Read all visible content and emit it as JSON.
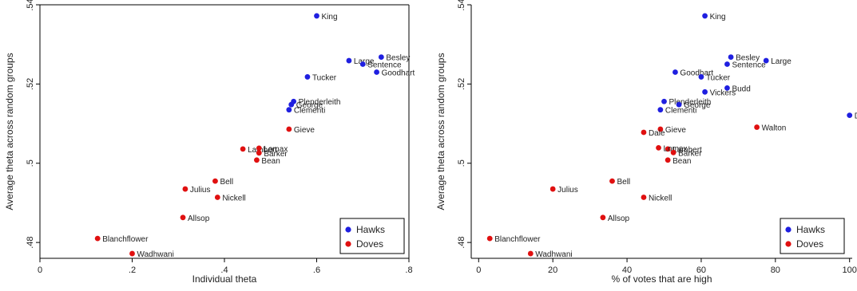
{
  "chart_data": [
    {
      "type": "scatter",
      "xlabel": "Individual theta",
      "ylabel": "Average theta across random groups",
      "xlim": [
        0,
        0.8
      ],
      "ylim": [
        0.476,
        0.54
      ],
      "xticks": [
        0,
        0.2,
        0.4,
        0.6,
        0.8
      ],
      "xticklabels": [
        "0",
        ".2",
        ".4",
        ".6",
        ".8"
      ],
      "yticks": [
        0.48,
        0.5,
        0.52,
        0.54
      ],
      "yticklabels": [
        ".48",
        ".5",
        ".52",
        ".54"
      ],
      "legend_position": "bottom-right",
      "series": [
        {
          "name": "Hawks",
          "color": "#1f1fe0",
          "points": [
            {
              "label": "King",
              "x": 0.6,
              "y": 0.5372
            },
            {
              "label": "Large",
              "x": 0.67,
              "y": 0.5259
            },
            {
              "label": "Besley",
              "x": 0.74,
              "y": 0.5268
            },
            {
              "label": "Sentence",
              "x": 0.7,
              "y": 0.525
            },
            {
              "label": "Goodhart",
              "x": 0.73,
              "y": 0.523
            },
            {
              "label": "Tucker",
              "x": 0.58,
              "y": 0.5218
            },
            {
              "label": "Plenderleith",
              "x": 0.55,
              "y": 0.5156
            },
            {
              "label": "George",
              "x": 0.545,
              "y": 0.5148
            },
            {
              "label": "Clementi",
              "x": 0.54,
              "y": 0.5135
            }
          ]
        },
        {
          "name": "Doves",
          "color": "#e01010",
          "points": [
            {
              "label": "Gieve",
              "x": 0.54,
              "y": 0.5086
            },
            {
              "label": "Lambert",
              "x": 0.44,
              "y": 0.5036
            },
            {
              "label": "Lomax",
              "x": 0.475,
              "y": 0.5038
            },
            {
              "label": "Barker",
              "x": 0.475,
              "y": 0.5026
            },
            {
              "label": "Bean",
              "x": 0.47,
              "y": 0.5008
            },
            {
              "label": "Bell",
              "x": 0.38,
              "y": 0.4955
            },
            {
              "label": "Julius",
              "x": 0.315,
              "y": 0.4935
            },
            {
              "label": "Nickell",
              "x": 0.385,
              "y": 0.4914
            },
            {
              "label": "Allsop",
              "x": 0.31,
              "y": 0.4863
            },
            {
              "label": "Blanchflower",
              "x": 0.125,
              "y": 0.481
            },
            {
              "label": "Wadhwani",
              "x": 0.2,
              "y": 0.4772
            }
          ]
        }
      ]
    },
    {
      "type": "scatter",
      "xlabel": "% of votes that are high",
      "ylabel": "Average theta across random groups",
      "xlim": [
        -2,
        102
      ],
      "ylim": [
        0.476,
        0.54
      ],
      "xticks": [
        0,
        20,
        40,
        60,
        80,
        100
      ],
      "xticklabels": [
        "0",
        "20",
        "40",
        "60",
        "80",
        "100"
      ],
      "yticks": [
        0.48,
        0.5,
        0.52,
        0.54
      ],
      "yticklabels": [
        ".48",
        ".5",
        ".52",
        ".54"
      ],
      "legend_position": "bottom-right",
      "series": [
        {
          "name": "Hawks",
          "color": "#1f1fe0",
          "points": [
            {
              "label": "King",
              "x": 61,
              "y": 0.5372
            },
            {
              "label": "Besley",
              "x": 68,
              "y": 0.5268
            },
            {
              "label": "Large",
              "x": 77.5,
              "y": 0.5259
            },
            {
              "label": "Sentence",
              "x": 67,
              "y": 0.525
            },
            {
              "label": "Goodhart",
              "x": 53,
              "y": 0.523
            },
            {
              "label": "Tucker",
              "x": 60,
              "y": 0.5218
            },
            {
              "label": "Budd",
              "x": 67,
              "y": 0.519
            },
            {
              "label": "Vickers",
              "x": 61,
              "y": 0.518
            },
            {
              "label": "Plenderleith",
              "x": 50,
              "y": 0.5156
            },
            {
              "label": "George",
              "x": 54,
              "y": 0.5148
            },
            {
              "label": "Clementi",
              "x": 49,
              "y": 0.5135
            },
            {
              "label": "Davies",
              "x": 100,
              "y": 0.5121
            }
          ]
        },
        {
          "name": "Doves",
          "color": "#e01010",
          "points": [
            {
              "label": "Walton",
              "x": 75,
              "y": 0.5091
            },
            {
              "label": "Gieve",
              "x": 49,
              "y": 0.5086
            },
            {
              "label": "Dale",
              "x": 44.5,
              "y": 0.5078
            },
            {
              "label": "Lambert",
              "x": 51,
              "y": 0.5036
            },
            {
              "label": "Lomax",
              "x": 48.5,
              "y": 0.5039
            },
            {
              "label": "Barker",
              "x": 52.5,
              "y": 0.5027
            },
            {
              "label": "Bean",
              "x": 51,
              "y": 0.5008
            },
            {
              "label": "Bell",
              "x": 36,
              "y": 0.4955
            },
            {
              "label": "Julius",
              "x": 20,
              "y": 0.4935
            },
            {
              "label": "Nickell",
              "x": 44.5,
              "y": 0.4914
            },
            {
              "label": "Allsop",
              "x": 33.5,
              "y": 0.4863
            },
            {
              "label": "Blanchflower",
              "x": 3,
              "y": 0.481
            },
            {
              "label": "Wadhwani",
              "x": 14,
              "y": 0.4772
            }
          ]
        }
      ]
    }
  ]
}
